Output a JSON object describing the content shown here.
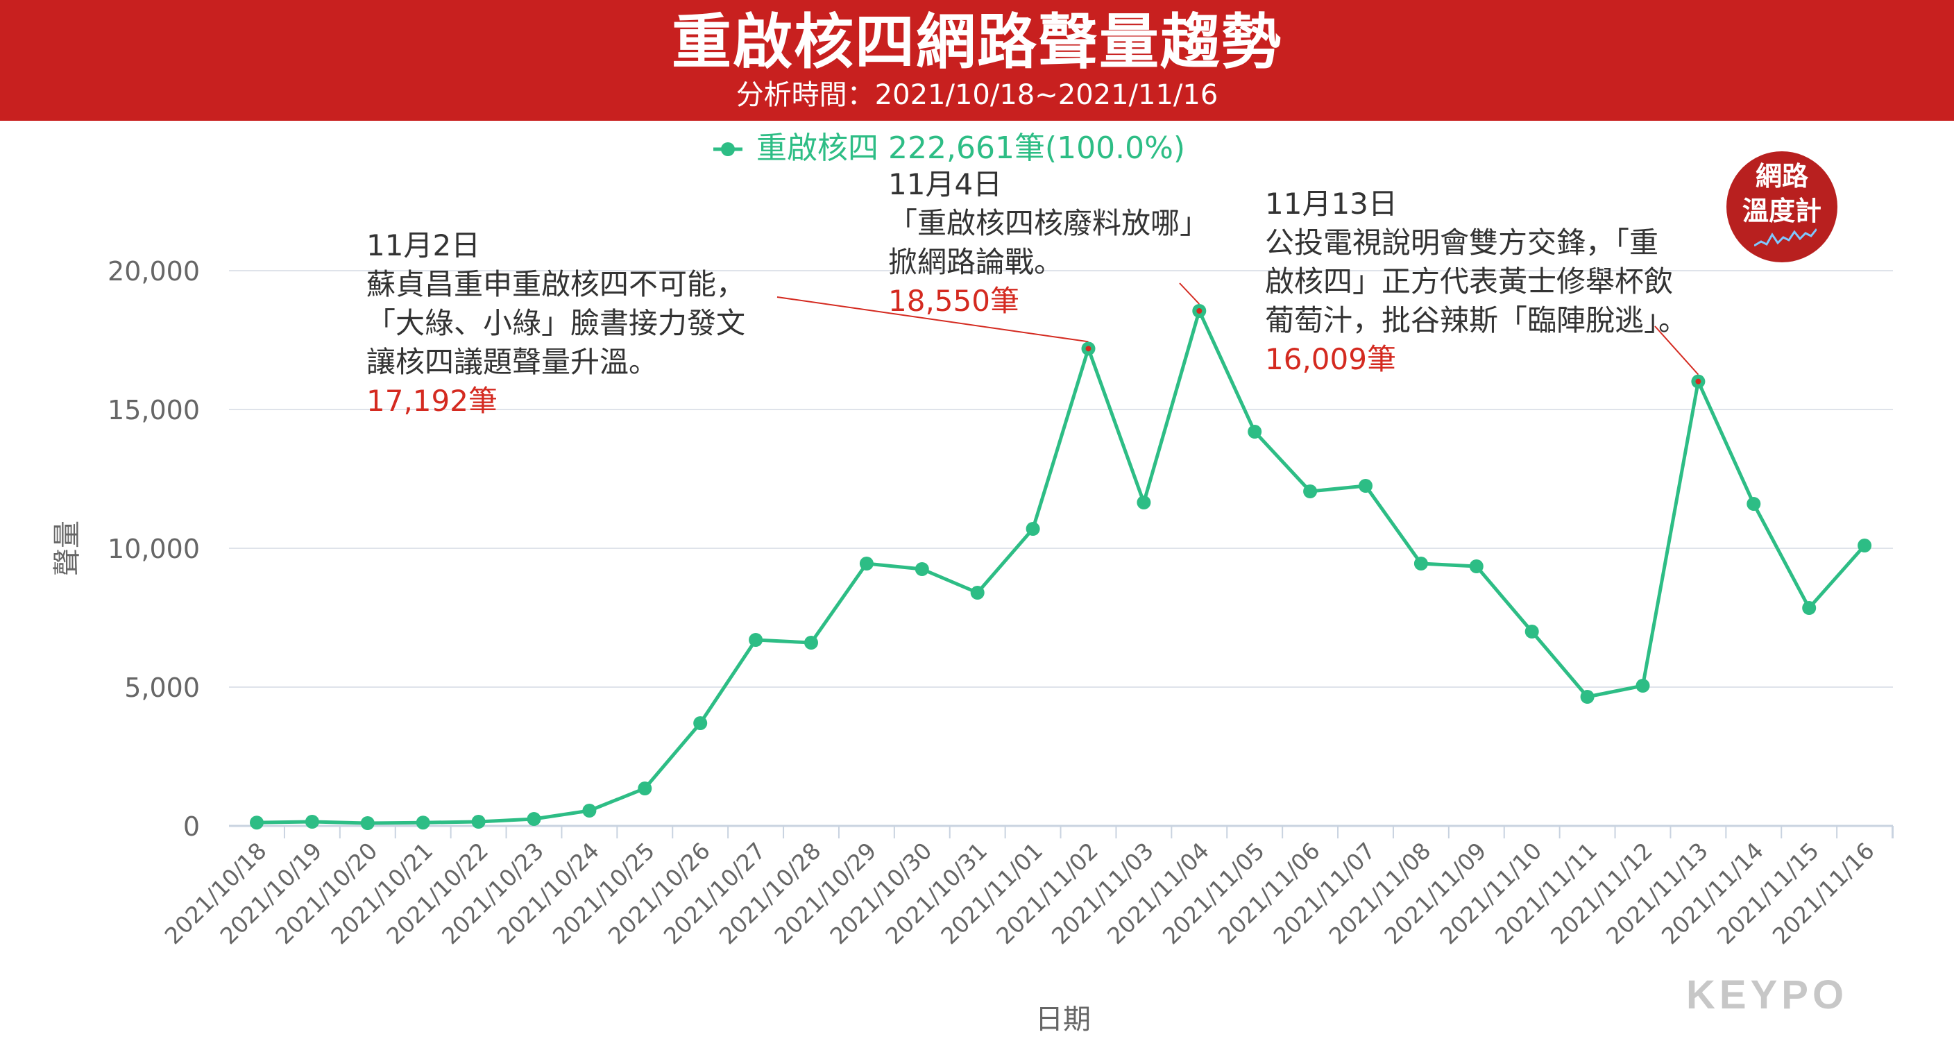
{
  "header": {
    "title": "重啟核四網路聲量趨勢",
    "subtitle": "分析時間：2021/10/18~2021/11/16"
  },
  "legend": {
    "label": "重啟核四 222,661筆(100.0%)"
  },
  "badge": {
    "line1": "網路",
    "line2": "溫度計"
  },
  "watermark": "KEYPO",
  "colors": {
    "header_bg": "#c8201f",
    "series": "#2dbd85",
    "annotation_value": "#d42a20",
    "annotation_text": "#333333",
    "axis_text": "#666666",
    "grid": "#dfe3ea"
  },
  "chart_data": {
    "type": "line",
    "title": "重啟核四網路聲量趨勢",
    "subtitle": "分析時間：2021/10/18~2021/11/16",
    "xlabel": "日期",
    "ylabel": "聲量",
    "ylim": [
      0,
      20000
    ],
    "yticks": [
      0,
      5000,
      10000,
      15000,
      20000
    ],
    "ytick_labels": [
      "0",
      "5,000",
      "10,000",
      "15,000",
      "20,000"
    ],
    "grid": true,
    "legend_position": "top-center",
    "categories": [
      "2021/10/18",
      "2021/10/19",
      "2021/10/20",
      "2021/10/21",
      "2021/10/22",
      "2021/10/23",
      "2021/10/24",
      "2021/10/25",
      "2021/10/26",
      "2021/10/27",
      "2021/10/28",
      "2021/10/29",
      "2021/10/30",
      "2021/10/31",
      "2021/11/01",
      "2021/11/02",
      "2021/11/03",
      "2021/11/04",
      "2021/11/05",
      "2021/11/06",
      "2021/11/07",
      "2021/11/08",
      "2021/11/09",
      "2021/11/10",
      "2021/11/11",
      "2021/11/12",
      "2021/11/13",
      "2021/11/14",
      "2021/11/15",
      "2021/11/16"
    ],
    "series": [
      {
        "name": "重啟核四",
        "values": [
          120,
          150,
          100,
          120,
          150,
          250,
          550,
          1350,
          3700,
          6700,
          6600,
          9450,
          9250,
          8400,
          10700,
          17192,
          11650,
          18550,
          14200,
          12050,
          12250,
          9450,
          9350,
          7000,
          4650,
          5050,
          16009,
          11600,
          7850,
          10100
        ]
      }
    ],
    "annotations": [
      {
        "index": 15,
        "date": "11月2日",
        "lines": [
          "蘇貞昌重申重啟核四不可能，",
          "「大綠、小綠」臉書接力發文",
          "讓核四議題聲量升溫。"
        ],
        "value_text": "17,192筆"
      },
      {
        "index": 17,
        "date": "11月4日",
        "lines": [
          "「重啟核四核廢料放哪」",
          "掀網路論戰。"
        ],
        "value_text": "18,550筆"
      },
      {
        "index": 26,
        "date": "11月13日",
        "lines": [
          "公投電視說明會雙方交鋒，「重",
          "啟核四」正方代表黃士修舉杯飲",
          "葡萄汁，批谷辣斯「臨陣脫逃」。"
        ],
        "value_text": "16,009筆"
      }
    ]
  }
}
